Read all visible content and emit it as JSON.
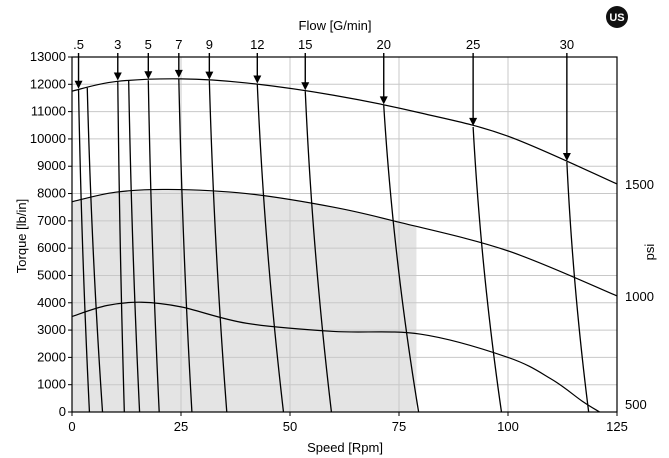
{
  "badge": "US",
  "chart_data": {
    "type": "line",
    "title": "",
    "xlabel": "Speed [Rpm]",
    "ylabel": "Torque [lb/in]",
    "top_axis_label": "Flow [G/min]",
    "right_axis_label": "psi",
    "xlim": [
      0,
      125
    ],
    "ylim": [
      0,
      13000
    ],
    "x_ticks": [
      "0",
      "25",
      "50",
      "75",
      "100",
      "125"
    ],
    "y_ticks": [
      "0",
      "1000",
      "2000",
      "3000",
      "4000",
      "5000",
      "6000",
      "7000",
      "8000",
      "9000",
      "10000",
      "11000",
      "12000",
      "13000"
    ],
    "grid": true,
    "pressure_curves": [
      {
        "label": "1500",
        "x": [
          0,
          10,
          25,
          40,
          60,
          80,
          100,
          125
        ],
        "y": [
          11750,
          12100,
          12200,
          12050,
          11600,
          10950,
          10100,
          8350
        ]
      },
      {
        "label": "1000",
        "x": [
          0,
          10,
          22,
          40,
          60,
          75,
          100,
          125
        ],
        "y": [
          7700,
          8050,
          8150,
          8000,
          7500,
          6950,
          5900,
          4250
        ]
      },
      {
        "label": "500",
        "x": [
          0,
          8,
          16,
          25,
          40,
          60,
          80,
          100,
          110,
          117,
          121
        ],
        "y": [
          3500,
          3900,
          4020,
          3850,
          3250,
          2950,
          2850,
          2000,
          1200,
          400,
          0
        ]
      }
    ],
    "flow_lines": [
      {
        "label": ".5",
        "x_top": 1.5,
        "x_bottom": 4
      },
      {
        "label": "",
        "x_top": 3.5,
        "x_bottom": 7
      },
      {
        "label": "3",
        "x_top": 10.5,
        "x_bottom": 12
      },
      {
        "label": "",
        "x_top": 13,
        "x_bottom": 15.5
      },
      {
        "label": "5",
        "x_top": 17.5,
        "x_bottom": 20
      },
      {
        "label": "7",
        "x_top": 24.5,
        "x_bottom": 27.5
      },
      {
        "label": "9",
        "x_top": 31.5,
        "x_bottom": 35.5
      },
      {
        "label": "12",
        "x_top": 42.5,
        "x_bottom": 48.5
      },
      {
        "label": "15",
        "x_top": 53.5,
        "x_bottom": 59.5
      },
      {
        "label": "20",
        "x_top": 71.5,
        "x_bottom": 79.5
      },
      {
        "label": "25",
        "x_top": 92,
        "x_bottom": 98.5
      },
      {
        "label": "30",
        "x_top": 113.5,
        "x_bottom": 118.5
      }
    ],
    "shaded_region": {
      "upper_curve": "1000",
      "x_max": 79
    }
  }
}
